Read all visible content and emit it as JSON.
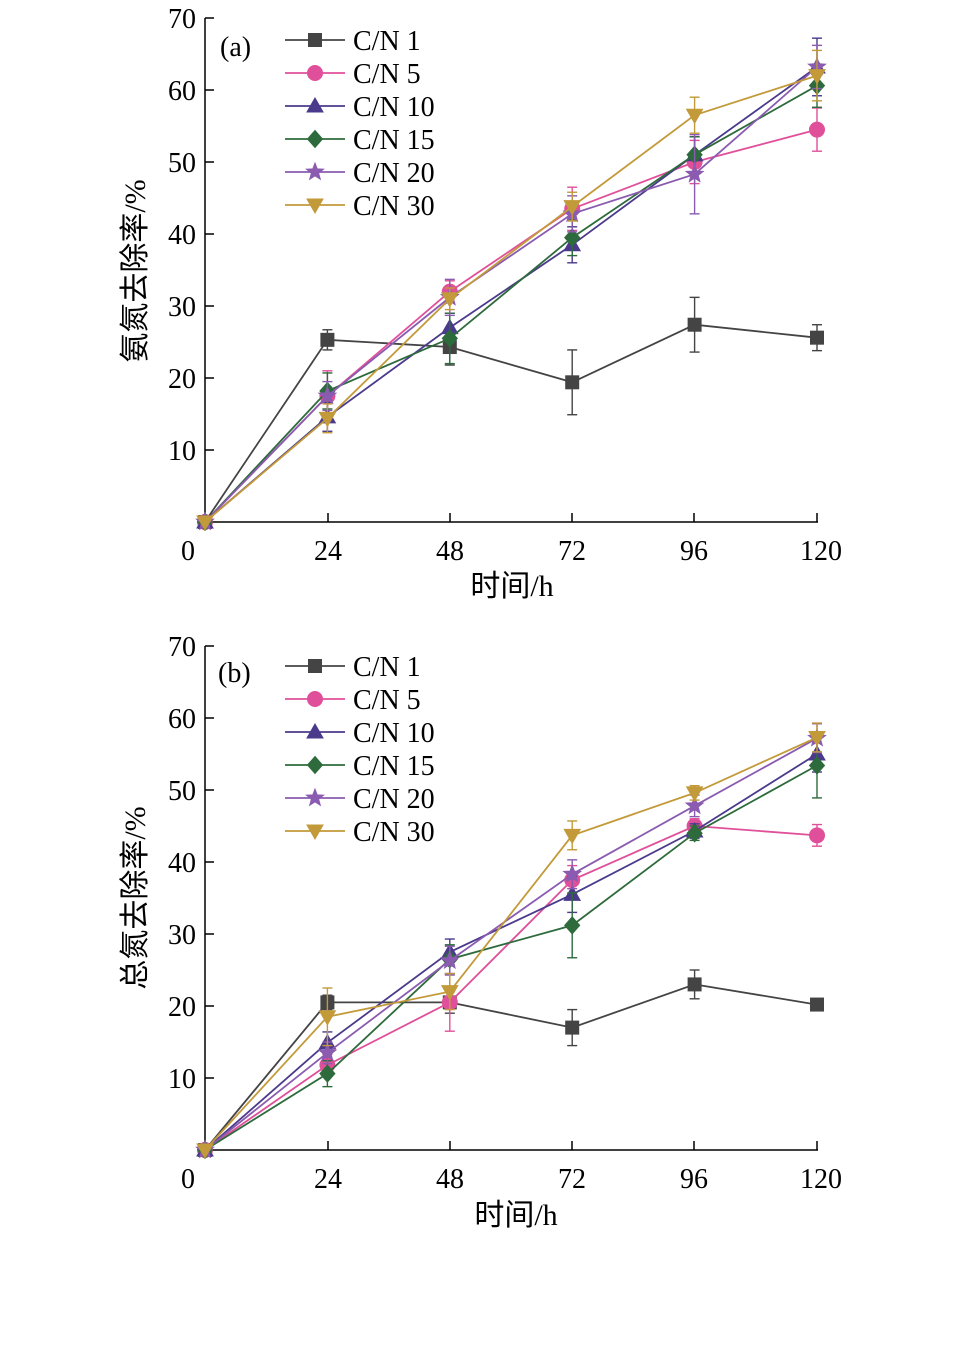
{
  "colors": {
    "C/N 1": "#444444",
    "C/N 5": "#e0509a",
    "C/N 10": "#4b3a8c",
    "C/N 15": "#2e6b3c",
    "C/N 20": "#8a5bb0",
    "C/N 30": "#c39a3a"
  },
  "chart_data": [
    {
      "type": "line",
      "panel_label": "(a)",
      "xlabel": "时间/h",
      "ylabel": "氨氮去除率/%",
      "xlim": [
        0,
        120
      ],
      "ylim": [
        0,
        70
      ],
      "x_ticks": [
        "0",
        "24",
        "48",
        "72",
        "96",
        "120"
      ],
      "y_ticks": [
        "10",
        "20",
        "30",
        "40",
        "50",
        "60",
        "70"
      ],
      "x": [
        0,
        24,
        48,
        72,
        96,
        120
      ],
      "legend_position": "top-left",
      "series": [
        {
          "name": "C/N 1",
          "marker": "square",
          "values": [
            0,
            25.3,
            24.3,
            19.4,
            27.4,
            25.6
          ],
          "errors": [
            0,
            1.4,
            2.5,
            4.5,
            3.8,
            1.8
          ]
        },
        {
          "name": "C/N 5",
          "marker": "circle",
          "values": [
            0,
            17.5,
            32.0,
            43.5,
            50.0,
            54.5
          ],
          "errors": [
            0,
            3.5,
            1.5,
            3.0,
            3.0,
            3.0
          ]
        },
        {
          "name": "C/N 10",
          "marker": "triangle-up",
          "values": [
            0,
            14.6,
            27.0,
            38.5,
            51.0,
            63.2
          ],
          "errors": [
            0,
            2.0,
            2.0,
            2.5,
            2.5,
            4.0
          ]
        },
        {
          "name": "C/N 15",
          "marker": "diamond",
          "values": [
            0,
            18.2,
            25.5,
            39.5,
            51.0,
            60.6
          ],
          "errors": [
            0,
            2.5,
            3.5,
            2.5,
            2.5,
            3.0
          ]
        },
        {
          "name": "C/N 20",
          "marker": "star",
          "values": [
            0,
            17.5,
            31.2,
            42.8,
            48.3,
            63.2
          ],
          "errors": [
            0,
            2.0,
            2.5,
            2.5,
            5.5,
            3.0
          ]
        },
        {
          "name": "C/N 30",
          "marker": "triangle-down",
          "values": [
            0,
            14.4,
            31.0,
            43.8,
            56.5,
            62.0
          ],
          "errors": [
            0,
            2.0,
            1.5,
            2.0,
            2.5,
            3.5
          ]
        }
      ]
    },
    {
      "type": "line",
      "panel_label": "(b)",
      "xlabel": "时间/h",
      "ylabel": "总氮去除率/%",
      "xlim": [
        0,
        120
      ],
      "ylim": [
        0,
        70
      ],
      "x_ticks": [
        "0",
        "24",
        "48",
        "72",
        "96",
        "120"
      ],
      "y_ticks": [
        "10",
        "20",
        "30",
        "40",
        "50",
        "60",
        "70"
      ],
      "x": [
        0,
        24,
        48,
        72,
        96,
        120
      ],
      "legend_position": "top-left",
      "series": [
        {
          "name": "C/N 1",
          "marker": "square",
          "values": [
            0,
            20.5,
            20.5,
            17.0,
            23.0,
            20.2
          ],
          "errors": [
            0,
            1.0,
            1.5,
            2.5,
            2.0,
            0.8
          ]
        },
        {
          "name": "C/N 5",
          "marker": "circle",
          "values": [
            0,
            11.8,
            20.5,
            37.5,
            45.0,
            43.7
          ],
          "errors": [
            0,
            1.5,
            4.0,
            2.0,
            1.0,
            1.5
          ]
        },
        {
          "name": "C/N 10",
          "marker": "triangle-up",
          "values": [
            0,
            14.9,
            27.5,
            35.5,
            44.3,
            55.0
          ],
          "errors": [
            0,
            1.5,
            1.8,
            2.5,
            1.0,
            2.5
          ]
        },
        {
          "name": "C/N 15",
          "marker": "diamond",
          "values": [
            0,
            10.6,
            26.5,
            31.2,
            44.0,
            53.4
          ],
          "errors": [
            0,
            1.8,
            2.0,
            4.5,
            1.0,
            4.5
          ]
        },
        {
          "name": "C/N 20",
          "marker": "star",
          "values": [
            0,
            13.5,
            26.3,
            38.3,
            47.8,
            57.2
          ],
          "errors": [
            0,
            1.5,
            2.0,
            2.0,
            1.5,
            2.0
          ]
        },
        {
          "name": "C/N 30",
          "marker": "triangle-down",
          "values": [
            0,
            18.5,
            22.0,
            43.7,
            49.6,
            57.3
          ],
          "errors": [
            0,
            4.0,
            2.5,
            2.0,
            1.0,
            2.0
          ]
        }
      ]
    }
  ]
}
